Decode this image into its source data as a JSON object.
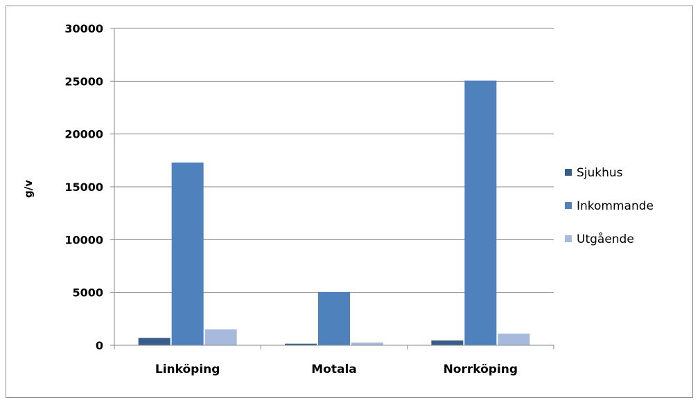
{
  "chart_data": {
    "type": "bar",
    "title": "",
    "xlabel": "",
    "ylabel": "g/v",
    "ylim": [
      0,
      30000
    ],
    "yticks": [
      0,
      5000,
      10000,
      15000,
      20000,
      25000,
      30000
    ],
    "grid": true,
    "legend_position": "right",
    "categories": [
      "Linköping",
      "Motala",
      "Norrköping"
    ],
    "series": [
      {
        "name": "Sjukhus",
        "color": "#385d8a",
        "values": [
          700,
          150,
          450
        ]
      },
      {
        "name": "Inkommande",
        "color": "#4f81bd",
        "values": [
          17300,
          5050,
          25050
        ]
      },
      {
        "name": "Utgående",
        "color": "#a7b9dc",
        "values": [
          1500,
          250,
          1100
        ]
      }
    ]
  }
}
